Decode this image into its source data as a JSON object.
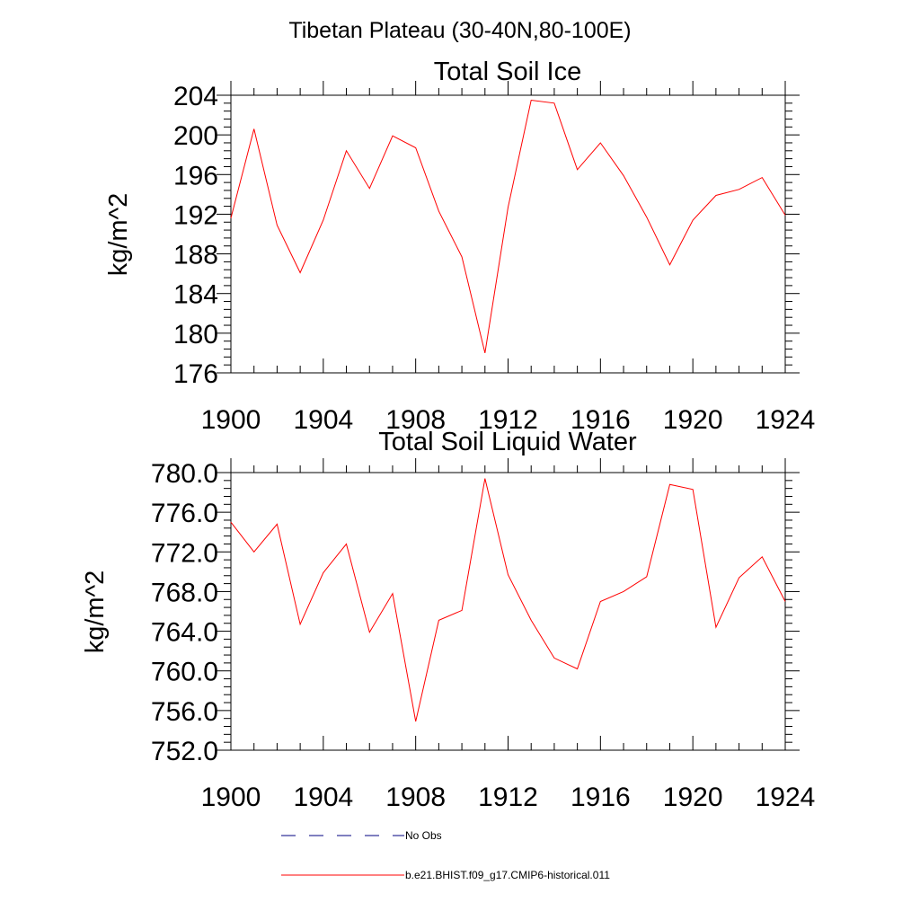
{
  "suptitle": "Tibetan Plateau (30-40N,80-100E)",
  "chart_data": [
    {
      "type": "line",
      "title": "Total Soil Ice",
      "xlabel": "",
      "ylabel": "kg/m^2",
      "xlim": [
        1900,
        1924
      ],
      "ylim": [
        176,
        204
      ],
      "xticks": [
        "1900",
        "1904",
        "1908",
        "1912",
        "1916",
        "1920",
        "1924"
      ],
      "yticks": [
        "176",
        "180",
        "184",
        "188",
        "192",
        "196",
        "200",
        "204"
      ],
      "x": [
        1900,
        1901,
        1902,
        1903,
        1904,
        1905,
        1906,
        1907,
        1908,
        1909,
        1910,
        1911,
        1912,
        1913,
        1914,
        1915,
        1916,
        1917,
        1918,
        1919,
        1920,
        1921,
        1922,
        1923,
        1924
      ],
      "series": [
        {
          "name": "b.e21.BHIST.f09_g17.CMIP6-historical.011",
          "color": "#ff0000",
          "values": [
            191.6,
            200.6,
            190.9,
            186.1,
            191.4,
            198.4,
            194.6,
            199.9,
            198.7,
            192.3,
            187.7,
            178.0,
            192.7,
            203.5,
            203.2,
            196.5,
            199.2,
            195.9,
            191.7,
            186.9,
            191.4,
            193.9,
            194.5,
            195.7,
            191.9
          ]
        }
      ]
    },
    {
      "type": "line",
      "title": "Total Soil Liquid Water",
      "xlabel": "",
      "ylabel": "kg/m^2",
      "xlim": [
        1900,
        1924
      ],
      "ylim": [
        752,
        780
      ],
      "xticks": [
        "1900",
        "1904",
        "1908",
        "1912",
        "1916",
        "1920",
        "1924"
      ],
      "yticks": [
        "752.0",
        "756.0",
        "760.0",
        "764.0",
        "768.0",
        "772.0",
        "776.0",
        "780.0"
      ],
      "x": [
        1900,
        1901,
        1902,
        1903,
        1904,
        1905,
        1906,
        1907,
        1908,
        1909,
        1910,
        1911,
        1912,
        1913,
        1914,
        1915,
        1916,
        1917,
        1918,
        1919,
        1920,
        1921,
        1922,
        1923,
        1924
      ],
      "series": [
        {
          "name": "b.e21.BHIST.f09_g17.CMIP6-historical.011",
          "color": "#ff0000",
          "values": [
            775.0,
            772.0,
            774.8,
            764.7,
            769.9,
            772.8,
            763.9,
            767.8,
            754.9,
            765.1,
            766.1,
            779.4,
            769.7,
            765.1,
            761.3,
            760.2,
            767.0,
            768.0,
            769.5,
            778.8,
            778.3,
            764.4,
            769.4,
            771.5,
            767.0
          ]
        }
      ]
    }
  ],
  "legend": {
    "items": [
      {
        "label": "No Obs",
        "color": "#000080",
        "style": "dashed"
      },
      {
        "label": "b.e21.BHIST.f09_g17.CMIP6-historical.011",
        "color": "#ff0000",
        "style": "solid"
      }
    ]
  }
}
